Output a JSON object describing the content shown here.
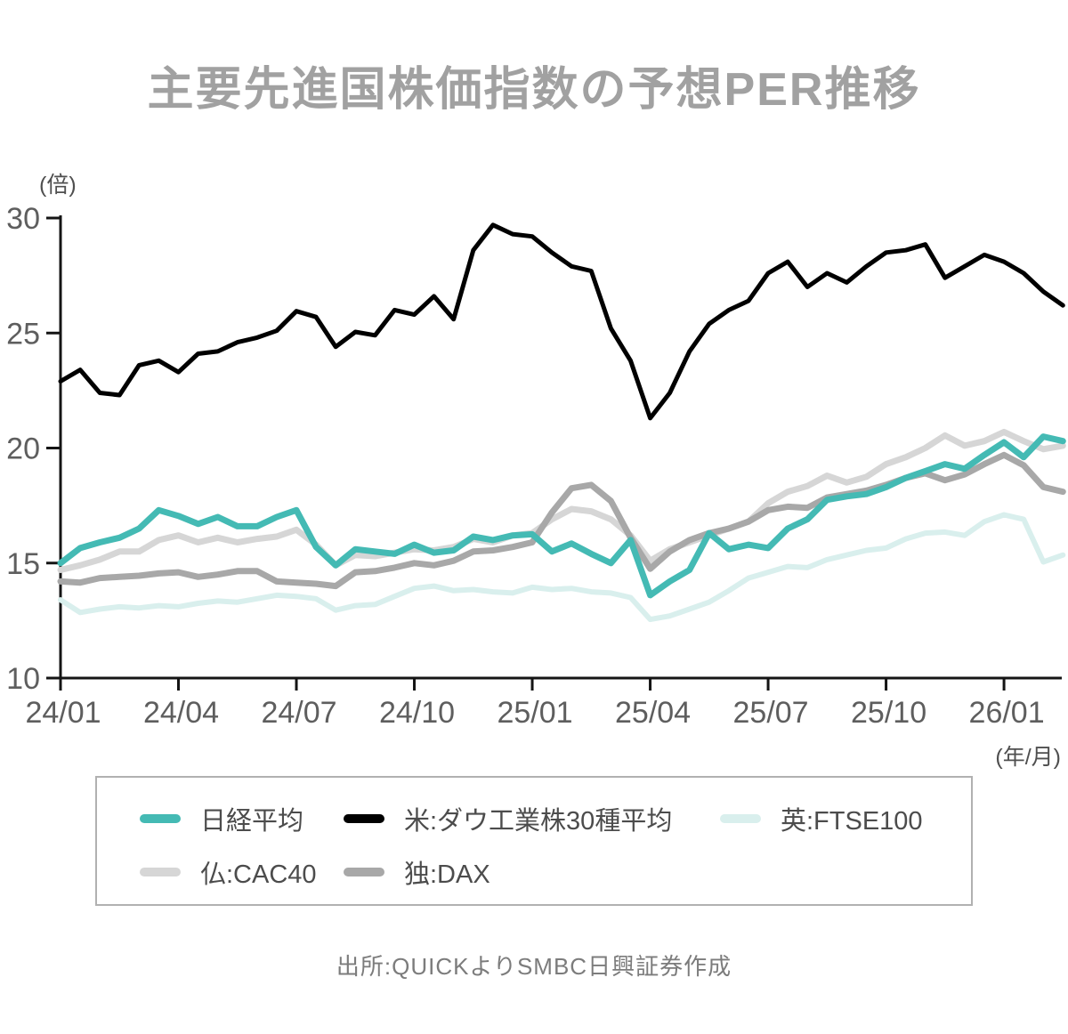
{
  "title": "主要先進国株価指数の予想PER推移",
  "y_unit_label": "(倍)",
  "x_unit_label": "(年/月)",
  "source_note": "出所:QUICKよりSMBC日興証券作成",
  "colors": {
    "title_text": "#a1a1a1",
    "axis": "#141414",
    "tick_label": "#5e5e5e",
    "legend_text": "#4c4c4c",
    "legend_border": "#b1b1b1",
    "source_text": "#7c7c7c",
    "background": "#ffffff"
  },
  "chart_data": {
    "type": "line",
    "title": "主要先進国株価指数の予想PER推移",
    "xlabel": "(年/月)",
    "ylabel": "(倍)",
    "ylim": [
      10,
      30
    ],
    "y_ticks": [
      30,
      25,
      20,
      15,
      10
    ],
    "x_tick_labels": [
      "24/01",
      "24/04",
      "24/07",
      "24/10",
      "25/01",
      "25/04",
      "25/07",
      "25/10",
      "26/01"
    ],
    "x_tick_months": [
      0,
      3,
      6,
      9,
      12,
      15,
      18,
      21,
      24
    ],
    "grid": false,
    "legend_position": "bottom",
    "t_step": 0.5,
    "t_start_label": "24/01",
    "series": [
      {
        "name": "日経平均",
        "color": "#44bab4",
        "width": 7,
        "values": [
          15.0,
          15.65,
          15.9,
          16.1,
          16.5,
          17.3,
          17.05,
          16.7,
          17.0,
          16.6,
          16.6,
          17.0,
          17.3,
          15.7,
          14.9,
          15.6,
          15.5,
          15.4,
          15.8,
          15.45,
          15.55,
          16.15,
          16.0,
          16.2,
          16.25,
          15.5,
          15.85,
          15.4,
          15.0,
          16.0,
          13.6,
          14.2,
          14.7,
          16.3,
          15.6,
          15.8,
          15.65,
          16.5,
          16.9,
          17.75,
          17.9,
          18.0,
          18.3,
          18.7,
          19.0,
          19.3,
          19.1,
          19.7,
          20.25,
          19.6,
          20.5,
          20.3
        ]
      },
      {
        "name": "米:ダウ工業株30種平均",
        "color": "#000000",
        "width": 5,
        "values": [
          22.9,
          23.4,
          22.4,
          22.3,
          23.6,
          23.8,
          23.3,
          24.1,
          24.2,
          24.6,
          24.8,
          25.1,
          25.95,
          25.7,
          24.4,
          25.05,
          24.9,
          26.0,
          25.8,
          26.6,
          25.6,
          28.6,
          29.7,
          29.3,
          29.2,
          28.5,
          27.9,
          27.7,
          25.2,
          23.8,
          21.3,
          22.4,
          24.2,
          25.4,
          26.0,
          26.4,
          27.6,
          28.1,
          27.0,
          27.6,
          27.2,
          27.9,
          28.5,
          28.6,
          28.85,
          27.4,
          27.9,
          28.4,
          28.1,
          27.6,
          26.8,
          26.2
        ]
      },
      {
        "name": "英:FTSE100",
        "color": "#d9efed",
        "width": 6,
        "values": [
          13.4,
          12.85,
          13.0,
          13.1,
          13.05,
          13.15,
          13.1,
          13.25,
          13.35,
          13.3,
          13.45,
          13.6,
          13.55,
          13.45,
          12.95,
          13.15,
          13.2,
          13.55,
          13.9,
          14.0,
          13.8,
          13.85,
          13.75,
          13.7,
          13.95,
          13.85,
          13.9,
          13.75,
          13.7,
          13.5,
          12.55,
          12.7,
          13.0,
          13.3,
          13.8,
          14.35,
          14.6,
          14.85,
          14.8,
          15.15,
          15.35,
          15.55,
          15.65,
          16.05,
          16.3,
          16.35,
          16.2,
          16.8,
          17.1,
          16.9,
          15.05,
          15.35
        ]
      },
      {
        "name": "仏:CAC40",
        "color": "#d6d6d6",
        "width": 7,
        "values": [
          14.7,
          14.9,
          15.15,
          15.5,
          15.5,
          16.0,
          16.2,
          15.9,
          16.1,
          15.9,
          16.05,
          16.15,
          16.45,
          15.8,
          14.9,
          15.35,
          15.3,
          15.45,
          15.6,
          15.55,
          15.7,
          16.05,
          15.9,
          16.2,
          16.3,
          16.9,
          17.35,
          17.25,
          16.9,
          16.2,
          15.1,
          15.6,
          15.9,
          16.2,
          16.5,
          16.8,
          17.6,
          18.1,
          18.35,
          18.8,
          18.5,
          18.75,
          19.3,
          19.6,
          20.0,
          20.55,
          20.1,
          20.3,
          20.7,
          20.3,
          19.95,
          20.1
        ]
      },
      {
        "name": "独:DAX",
        "color": "#a8a8a8",
        "width": 7,
        "values": [
          14.2,
          14.15,
          14.35,
          14.4,
          14.45,
          14.55,
          14.6,
          14.4,
          14.5,
          14.65,
          14.65,
          14.2,
          14.15,
          14.1,
          14.0,
          14.6,
          14.65,
          14.8,
          15.0,
          14.9,
          15.1,
          15.5,
          15.55,
          15.7,
          15.9,
          17.2,
          18.25,
          18.4,
          17.7,
          16.1,
          14.75,
          15.5,
          16.0,
          16.3,
          16.5,
          16.8,
          17.3,
          17.45,
          17.4,
          17.85,
          18.0,
          18.15,
          18.4,
          18.7,
          18.9,
          18.6,
          18.85,
          19.3,
          19.7,
          19.25,
          18.3,
          18.1
        ]
      }
    ]
  },
  "legend": {
    "items": [
      {
        "label": "日経平均"
      },
      {
        "label": "米:ダウ工業株30種平均"
      },
      {
        "label": "英:FTSE100"
      },
      {
        "label": "仏:CAC40"
      },
      {
        "label": "独:DAX"
      }
    ]
  }
}
